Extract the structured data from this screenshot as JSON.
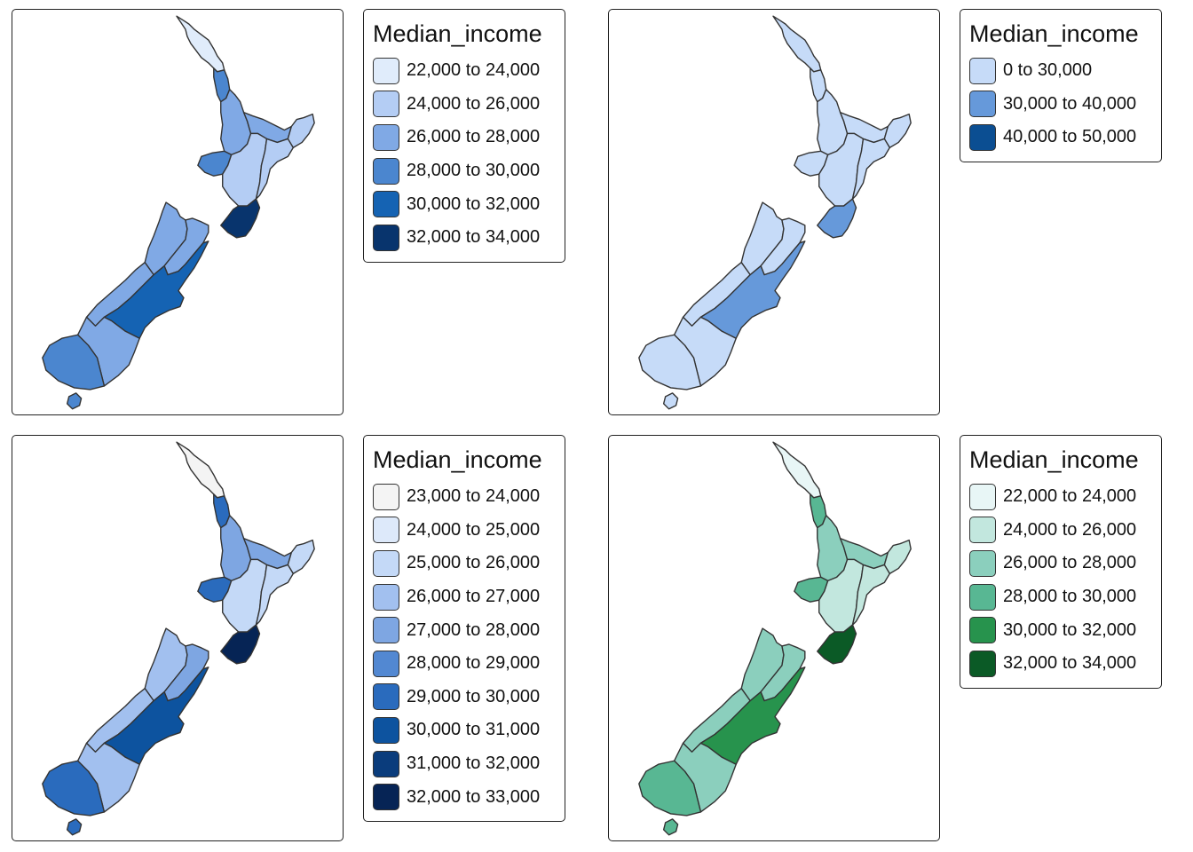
{
  "panels": [
    {
      "legend_title": "Median_income",
      "legend_items": [
        {
          "label": "22,000 to 24,000",
          "color": "#e0ecfb"
        },
        {
          "label": "24,000 to 26,000",
          "color": "#b4cdf4"
        },
        {
          "label": "26,000 to 28,000",
          "color": "#80a9e5"
        },
        {
          "label": "28,000 to 30,000",
          "color": "#4b86cf"
        },
        {
          "label": "30,000 to 32,000",
          "color": "#1563b3"
        },
        {
          "label": "32,000 to 34,000",
          "color": "#08346d"
        }
      ],
      "region_colors": {
        "northland": "#e0ecfb",
        "auckland": "#4b86cf",
        "waikato": "#80a9e5",
        "bay-of-plenty": "#80a9e5",
        "gisborne": "#b4cdf4",
        "taranaki": "#4b86cf",
        "manawatu": "#b4cdf4",
        "hawkes-bay": "#b4cdf4",
        "wellington": "#08346d",
        "tasman-nelson": "#80a9e5",
        "marlborough": "#80a9e5",
        "west-coast": "#80a9e5",
        "canterbury": "#1563b3",
        "otago": "#80a9e5",
        "southland": "#4b86cf",
        "stewart": "#4b86cf"
      }
    },
    {
      "legend_title": "Median_income",
      "legend_items": [
        {
          "label": "0 to 30,000",
          "color": "#c6dbf8"
        },
        {
          "label": "30,000 to 40,000",
          "color": "#6699da"
        },
        {
          "label": "40,000 to 50,000",
          "color": "#0b4e92"
        }
      ],
      "region_colors": {
        "northland": "#c6dbf8",
        "auckland": "#c6dbf8",
        "waikato": "#c6dbf8",
        "bay-of-plenty": "#c6dbf8",
        "gisborne": "#c6dbf8",
        "taranaki": "#c6dbf8",
        "manawatu": "#c6dbf8",
        "hawkes-bay": "#c6dbf8",
        "wellington": "#6699da",
        "tasman-nelson": "#c6dbf8",
        "marlborough": "#c6dbf8",
        "west-coast": "#c6dbf8",
        "canterbury": "#6699da",
        "otago": "#c6dbf8",
        "southland": "#c6dbf8",
        "stewart": "#c6dbf8"
      }
    },
    {
      "legend_title": "Median_income",
      "legend_items": [
        {
          "label": "23,000 to 24,000",
          "color": "#f4f4f4"
        },
        {
          "label": "24,000 to 25,000",
          "color": "#dde9fa"
        },
        {
          "label": "25,000 to 26,000",
          "color": "#c4d9f7"
        },
        {
          "label": "26,000 to 27,000",
          "color": "#a2c0ef"
        },
        {
          "label": "27,000 to 28,000",
          "color": "#7ea6e2"
        },
        {
          "label": "28,000 to 29,000",
          "color": "#5288d2"
        },
        {
          "label": "29,000 to 30,000",
          "color": "#2a6bbd"
        },
        {
          "label": "30,000 to 31,000",
          "color": "#0d539f"
        },
        {
          "label": "31,000 to 32,000",
          "color": "#0a3c7c"
        },
        {
          "label": "32,000 to 33,000",
          "color": "#062455"
        }
      ],
      "region_colors": {
        "northland": "#f4f4f4",
        "auckland": "#2a6bbd",
        "waikato": "#7ea6e2",
        "bay-of-plenty": "#7ea6e2",
        "gisborne": "#c4d9f7",
        "taranaki": "#2a6bbd",
        "manawatu": "#c4d9f7",
        "hawkes-bay": "#c4d9f7",
        "wellington": "#062455",
        "tasman-nelson": "#a2c0ef",
        "marlborough": "#7ea6e2",
        "west-coast": "#a2c0ef",
        "canterbury": "#0d539f",
        "otago": "#a2c0ef",
        "southland": "#2a6bbd",
        "stewart": "#2a6bbd"
      }
    },
    {
      "legend_title": "Median_income",
      "legend_items": [
        {
          "label": "22,000 to 24,000",
          "color": "#e8f6f6"
        },
        {
          "label": "24,000 to 26,000",
          "color": "#c2e7de"
        },
        {
          "label": "26,000 to 28,000",
          "color": "#8bcfbd"
        },
        {
          "label": "28,000 to 30,000",
          "color": "#58b793"
        },
        {
          "label": "30,000 to 32,000",
          "color": "#27934d"
        },
        {
          "label": "32,000 to 34,000",
          "color": "#0b5a26"
        }
      ],
      "region_colors": {
        "northland": "#e8f6f6",
        "auckland": "#58b793",
        "waikato": "#8bcfbd",
        "bay-of-plenty": "#8bcfbd",
        "gisborne": "#c2e7de",
        "taranaki": "#58b793",
        "manawatu": "#c2e7de",
        "hawkes-bay": "#c2e7de",
        "wellington": "#0b5a26",
        "tasman-nelson": "#8bcfbd",
        "marlborough": "#8bcfbd",
        "west-coast": "#8bcfbd",
        "canterbury": "#27934d",
        "otago": "#8bcfbd",
        "southland": "#58b793",
        "stewart": "#58b793"
      }
    }
  ]
}
